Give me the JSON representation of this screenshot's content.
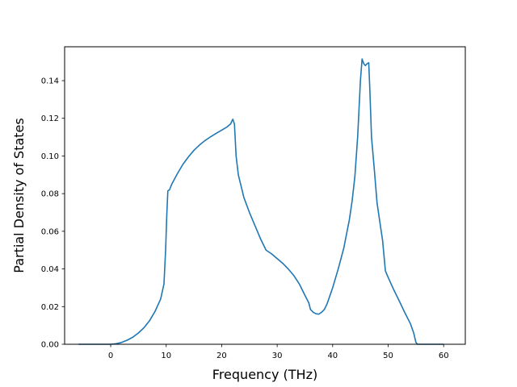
{
  "chart_data": {
    "type": "line",
    "title": "",
    "xlabel": "Frequency (THz)",
    "ylabel": "Partial Density of States",
    "xlim": [
      -8.3,
      63.9
    ],
    "ylim": [
      0.0,
      0.158
    ],
    "x_ticks": [
      0,
      10,
      20,
      30,
      40,
      50,
      60
    ],
    "y_ticks": [
      0.0,
      0.02,
      0.04,
      0.06,
      0.08,
      0.1,
      0.12,
      0.14
    ],
    "x_tick_labels": [
      "0",
      "10",
      "20",
      "30",
      "40",
      "50",
      "60"
    ],
    "y_tick_labels": [
      "0.00",
      "0.02",
      "0.04",
      "0.06",
      "0.08",
      "0.10",
      "0.12",
      "0.14"
    ],
    "grid": false,
    "series": [
      {
        "color": "#1f77b4",
        "x": [
          -5.8,
          -3,
          0,
          1,
          2,
          3,
          4,
          5,
          6,
          7,
          8,
          9,
          9.6,
          9.9,
          10.1,
          10.3,
          10.6,
          11,
          12,
          13,
          14,
          15,
          16,
          17,
          18,
          19,
          20,
          21,
          21.6,
          22,
          22.3,
          22.6,
          23,
          24,
          25,
          26,
          27,
          28,
          29,
          30,
          31,
          32,
          33,
          34,
          35,
          35.7,
          36,
          36.5,
          37,
          37.5,
          38,
          38.5,
          39,
          40,
          41,
          42,
          43,
          43.5,
          44,
          44.5,
          45,
          45.3,
          45.6,
          45.9,
          46.2,
          46.5,
          46.7,
          47,
          47.5,
          48,
          49,
          49.5,
          50,
          51,
          52,
          53,
          54,
          54.6,
          55,
          55.3,
          57,
          60
        ],
        "values": [
          0.0,
          0.0,
          0.0,
          0.0003,
          0.001,
          0.0022,
          0.0038,
          0.006,
          0.0088,
          0.0125,
          0.0175,
          0.024,
          0.032,
          0.05,
          0.068,
          0.0815,
          0.082,
          0.085,
          0.0905,
          0.0955,
          0.0995,
          0.103,
          0.1058,
          0.1082,
          0.1102,
          0.112,
          0.1137,
          0.1155,
          0.117,
          0.1195,
          0.117,
          0.1,
          0.09,
          0.078,
          0.07,
          0.063,
          0.056,
          0.05,
          0.048,
          0.0455,
          0.043,
          0.04,
          0.0365,
          0.032,
          0.026,
          0.022,
          0.0185,
          0.017,
          0.0162,
          0.016,
          0.017,
          0.0185,
          0.0215,
          0.03,
          0.04,
          0.051,
          0.066,
          0.076,
          0.089,
          0.11,
          0.14,
          0.1515,
          0.149,
          0.148,
          0.149,
          0.1495,
          0.135,
          0.11,
          0.093,
          0.075,
          0.055,
          0.039,
          0.0355,
          0.029,
          0.023,
          0.0168,
          0.011,
          0.006,
          0.001,
          0.0,
          0.0,
          0.0
        ]
      }
    ]
  }
}
